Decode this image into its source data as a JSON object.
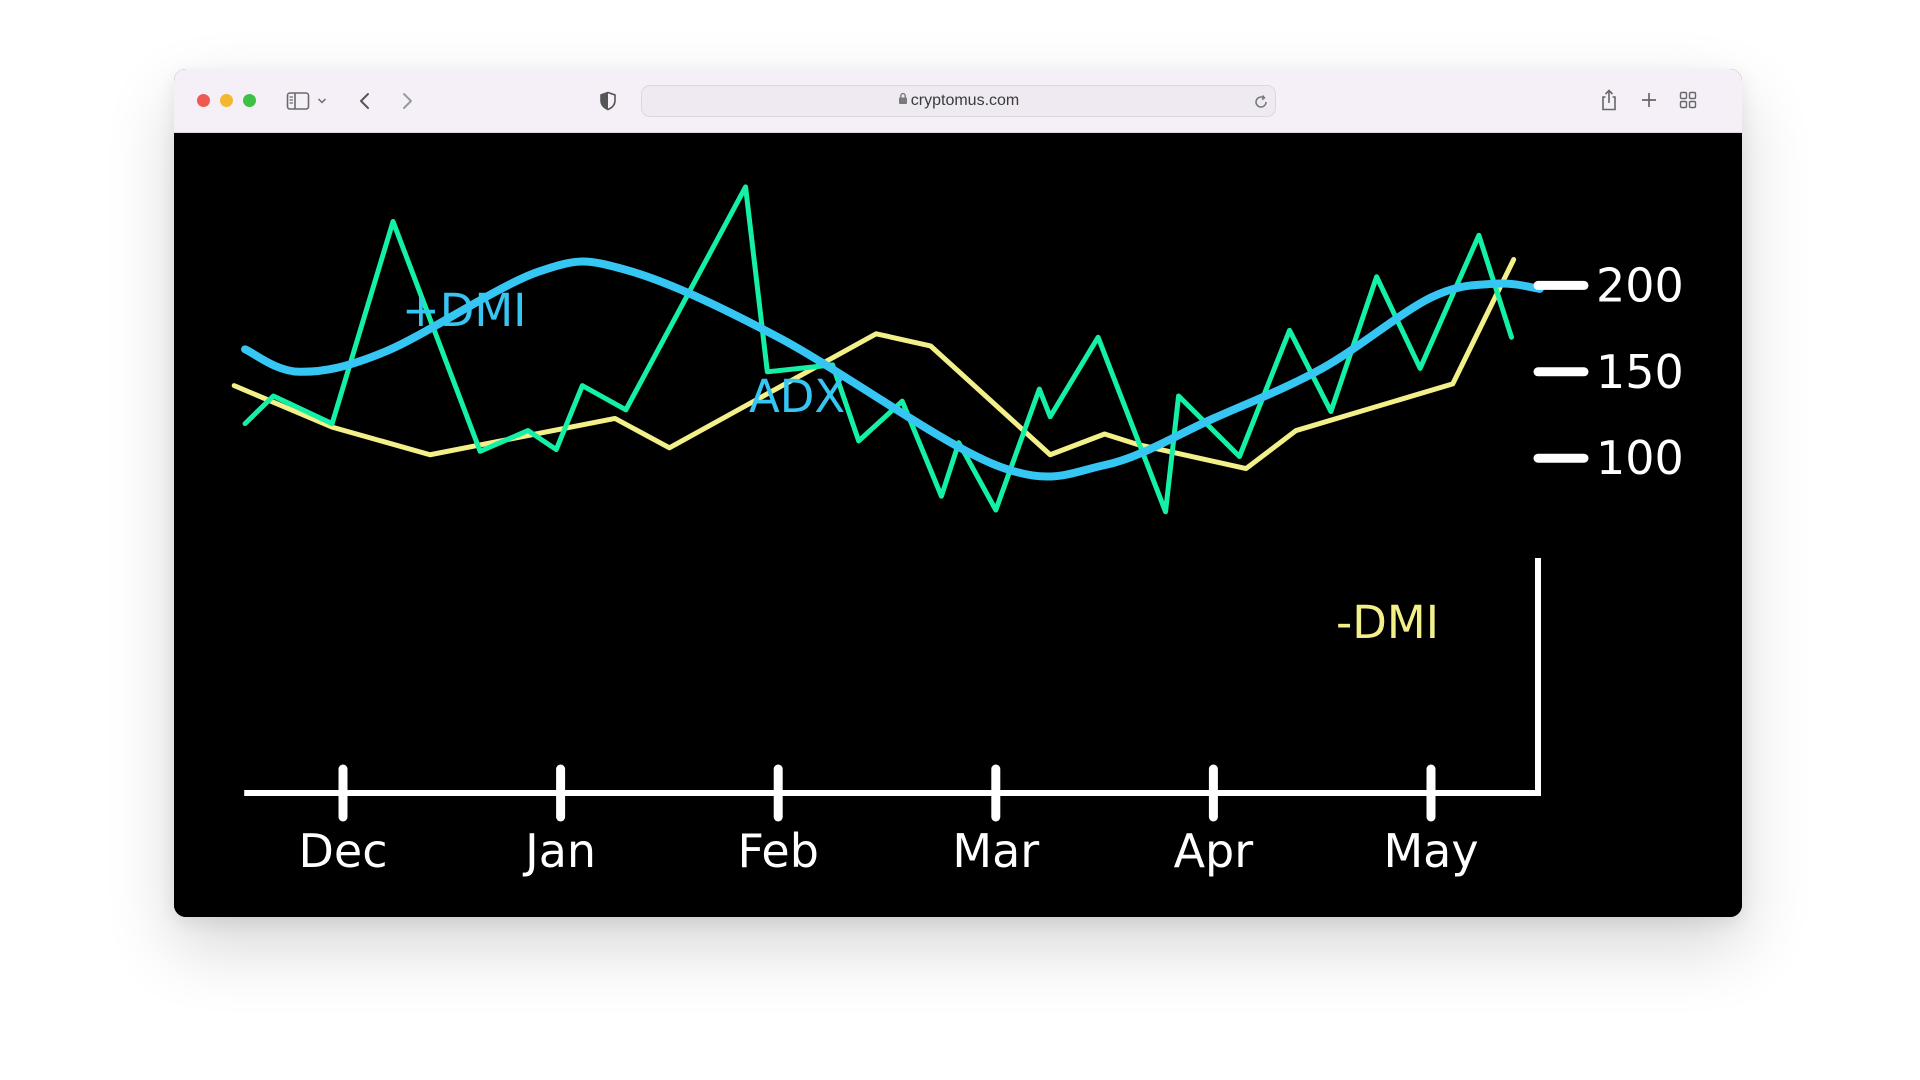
{
  "browser": {
    "url": "cryptomus.com",
    "icons": [
      "sidebar-icon",
      "chevron-down-icon",
      "back-icon",
      "forward-icon",
      "shield-icon",
      "lock-icon",
      "reload-icon",
      "share-icon",
      "plus-icon",
      "tab-grid-icon"
    ]
  },
  "chart_data": {
    "type": "line",
    "x_ticks": [
      "Dec",
      "Jan",
      "Feb",
      "Mar",
      "Apr",
      "May"
    ],
    "y_ticks": [
      200,
      150,
      100
    ],
    "background": "#000000",
    "axis_color": "#ffffff",
    "series_labels": {
      "plus_dmi": "+DMI",
      "adx": "ADX",
      "minus_dmi": "-DMI"
    },
    "colors": {
      "green": "#14f0a6",
      "blue": "#36c6f4",
      "yellow": "#f3f08a"
    },
    "series": [
      {
        "name": "ADX",
        "color": "#36c6f4",
        "smooth": true,
        "points": [
          [
            -0.45,
            163
          ],
          [
            -0.2,
            150
          ],
          [
            0.2,
            162
          ],
          [
            0.9,
            208
          ],
          [
            1.3,
            209
          ],
          [
            2.0,
            170
          ],
          [
            3.0,
            96
          ],
          [
            3.5,
            96
          ],
          [
            4.0,
            123
          ],
          [
            4.5,
            152
          ],
          [
            5.0,
            193
          ],
          [
            5.3,
            201
          ],
          [
            5.5,
            198
          ]
        ]
      },
      {
        "name": "+DMI",
        "color": "#14f0a6",
        "smooth": false,
        "points": [
          [
            -0.45,
            120
          ],
          [
            -0.32,
            136
          ],
          [
            -0.05,
            120
          ],
          [
            0.23,
            237
          ],
          [
            0.63,
            104
          ],
          [
            0.85,
            116
          ],
          [
            0.98,
            105
          ],
          [
            1.1,
            142
          ],
          [
            1.3,
            128
          ],
          [
            1.85,
            257
          ],
          [
            1.95,
            150
          ],
          [
            2.25,
            154
          ],
          [
            2.37,
            110
          ],
          [
            2.57,
            133
          ],
          [
            2.75,
            78
          ],
          [
            2.83,
            109
          ],
          [
            3.0,
            70
          ],
          [
            3.2,
            140
          ],
          [
            3.25,
            124
          ],
          [
            3.47,
            170
          ],
          [
            3.78,
            69
          ],
          [
            3.84,
            136
          ],
          [
            4.12,
            101
          ],
          [
            4.35,
            174
          ],
          [
            4.54,
            127
          ],
          [
            4.75,
            205
          ],
          [
            4.95,
            152
          ],
          [
            5.22,
            229
          ],
          [
            5.37,
            170
          ]
        ]
      },
      {
        "name": "-DMI",
        "color": "#f3f08a",
        "smooth": false,
        "points": [
          [
            -0.5,
            142
          ],
          [
            -0.05,
            118
          ],
          [
            0.4,
            102
          ],
          [
            1.25,
            123
          ],
          [
            1.5,
            106
          ],
          [
            2.45,
            172
          ],
          [
            2.7,
            165
          ],
          [
            3.25,
            102
          ],
          [
            3.5,
            114
          ],
          [
            3.65,
            108
          ],
          [
            4.15,
            94
          ],
          [
            4.38,
            116
          ],
          [
            5.1,
            143
          ],
          [
            5.38,
            215
          ]
        ]
      }
    ]
  }
}
